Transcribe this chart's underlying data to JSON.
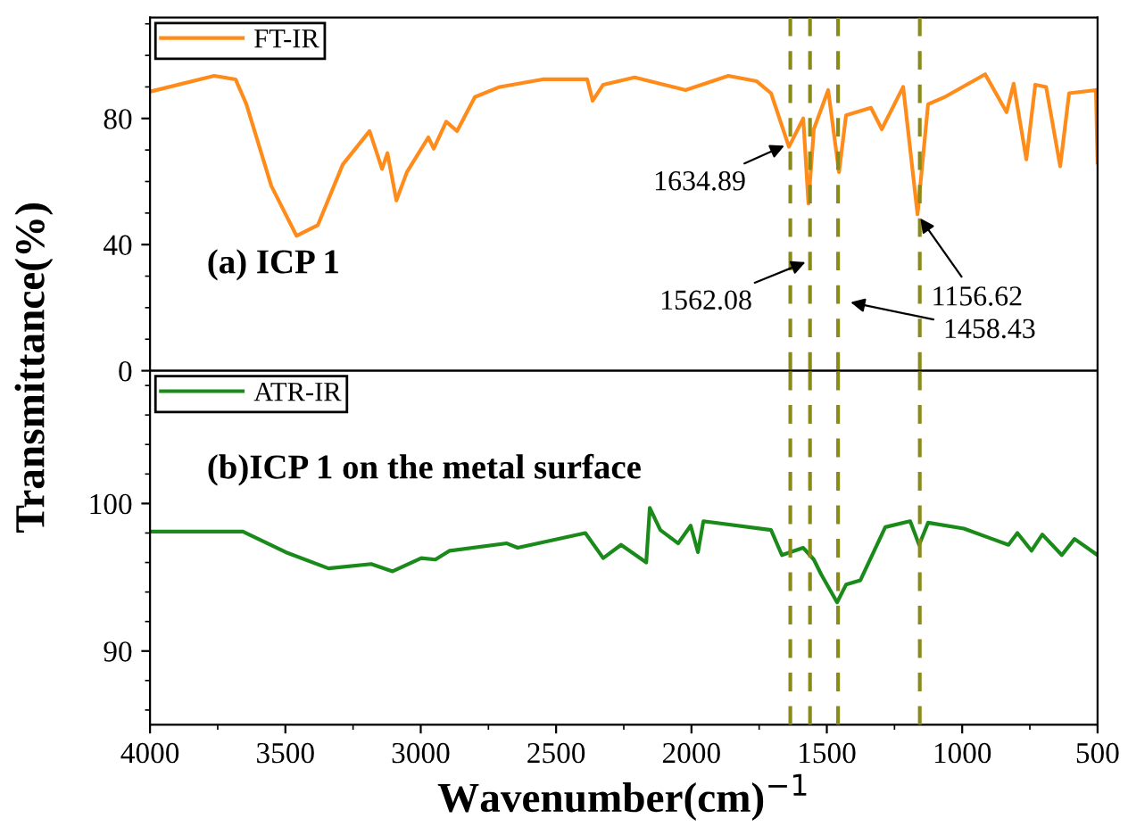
{
  "chart_data": [
    {
      "type": "line",
      "ylabel": "Transmittance(%)",
      "xlim": [
        4000,
        500
      ],
      "xticks": [
        4000,
        3500,
        3000,
        2500,
        2000,
        1500,
        1000,
        500
      ],
      "ylim": [
        0,
        112
      ],
      "yticks": [
        0,
        40,
        80
      ],
      "tick_labels": "y",
      "legend": "top left",
      "grid": false,
      "x": [
        4000,
        3763,
        3684,
        3644,
        3552,
        3459,
        3380,
        3288,
        3189,
        3143,
        3123,
        3090,
        3051,
        2972,
        2952,
        2906,
        2866,
        2800,
        2708,
        2550,
        2385,
        2365,
        2326,
        2210,
        2022,
        1864,
        1759,
        1706,
        1640,
        1587,
        1568,
        1548,
        1495,
        1455,
        1429,
        1337,
        1297,
        1218,
        1165,
        1126,
        1060,
        915,
        836,
        810,
        763,
        730,
        690,
        638,
        605,
        506,
        500
      ],
      "series": [
        {
          "name": "FT-IR",
          "color": "#ff8c1a",
          "values": [
            88.5,
            93.5,
            92.4,
            84.5,
            58.6,
            42.8,
            46.2,
            65.4,
            76,
            64,
            69,
            54,
            63,
            74,
            70.4,
            79,
            76,
            86.8,
            90,
            92.4,
            92.4,
            85.6,
            90.7,
            93,
            89,
            93.5,
            91.8,
            88,
            71,
            80,
            53,
            76.6,
            89,
            63,
            81,
            83.4,
            76.6,
            90,
            49.6,
            84.5,
            87,
            94,
            82,
            91,
            67,
            90.7,
            90,
            64.8,
            88,
            89,
            66
          ]
        }
      ],
      "ref_lines": [
        {
          "axis": "x",
          "value": 1634.89,
          "color": "#8a8a1a",
          "line_style": "dashed"
        },
        {
          "axis": "x",
          "value": 1562.08,
          "color": "#8a8a1a",
          "line_style": "dashed"
        },
        {
          "axis": "x",
          "value": 1458.43,
          "color": "#8a8a1a",
          "line_style": "dashed"
        },
        {
          "axis": "x",
          "value": 1156.62,
          "color": "#8a8a1a",
          "line_style": "dashed"
        }
      ],
      "annotations": [
        {
          "text": "1634.89",
          "x": 1640,
          "y": 72
        },
        {
          "text": "1562.08",
          "x": 1562,
          "y": 35
        },
        {
          "text": "1458.43",
          "x": 1430,
          "y": 22
        },
        {
          "text": "1156.62",
          "x": 1165,
          "y": 49.6
        },
        "(a) ICP 1"
      ]
    },
    {
      "type": "line",
      "xlabel": "Wavenumber(cm)$^{−1}$",
      "xlim": [
        4000,
        500
      ],
      "xticks": [
        4000,
        3500,
        3000,
        2500,
        2000,
        1500,
        1000,
        500
      ],
      "ylim": [
        85,
        109
      ],
      "yticks": [
        90,
        100
      ],
      "legend": "top left",
      "grid": false,
      "x": [
        4000,
        3657,
        3499,
        3341,
        3183,
        3104,
        2998,
        2946,
        2893,
        2682,
        2642,
        2392,
        2326,
        2260,
        2167,
        2154,
        2115,
        2049,
        2003,
        1976,
        1956,
        1706,
        1666,
        1587,
        1548,
        1521,
        1462,
        1429,
        1376,
        1284,
        1192,
        1159,
        1126,
        994,
        889,
        829,
        796,
        744,
        704,
        632,
        585,
        500
      ],
      "series": [
        {
          "name": "ATR-IR",
          "color": "#1a8a1a",
          "values": [
            98.1,
            98.1,
            96.7,
            95.6,
            95.9,
            95.4,
            96.3,
            96.2,
            96.8,
            97.3,
            97.0,
            98,
            96.3,
            97.2,
            96,
            99.7,
            98.2,
            97.3,
            98.5,
            96.7,
            98.8,
            98.2,
            96.5,
            97,
            96.2,
            95.2,
            93.3,
            94.5,
            94.8,
            98.4,
            98.8,
            97.2,
            98.7,
            98.3,
            97.6,
            97.2,
            98.0,
            96.8,
            97.9,
            96.5,
            97.6,
            96.5
          ]
        }
      ],
      "ref_lines": [
        {
          "axis": "x",
          "value": 1634.89,
          "color": "#8a8a1a",
          "line_style": "dashed"
        },
        {
          "axis": "x",
          "value": 1562.08,
          "color": "#8a8a1a",
          "line_style": "dashed"
        },
        {
          "axis": "x",
          "value": 1458.43,
          "color": "#8a8a1a",
          "line_style": "dashed"
        },
        {
          "axis": "x",
          "value": 1156.62,
          "color": "#8a8a1a",
          "line_style": "dashed"
        }
      ],
      "annotations": [
        "(b)ICP 1 on the metal surface"
      ]
    }
  ]
}
